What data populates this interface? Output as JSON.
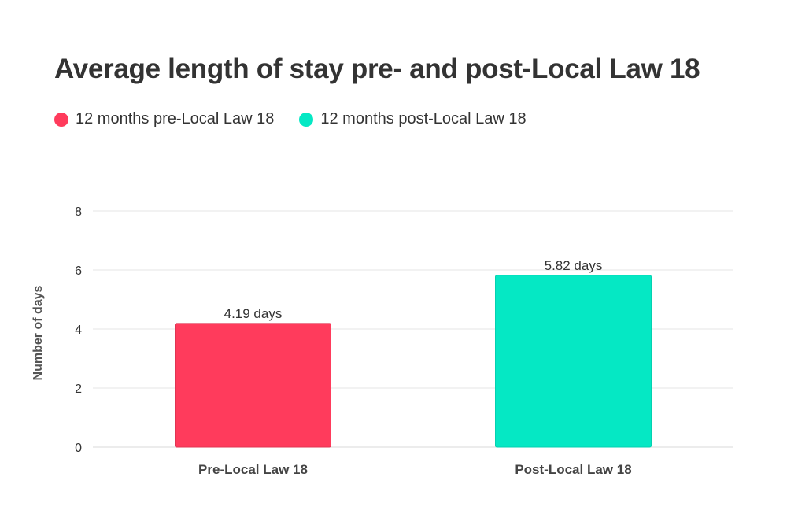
{
  "chart_data": {
    "type": "bar",
    "title": "Average length of stay pre- and post-Local Law 18",
    "xlabel": "",
    "ylabel": "Number of days",
    "categories": [
      "Pre-Local Law 18",
      "Post-Local Law 18"
    ],
    "series": [
      {
        "name": "12 months pre-Local Law 18",
        "color": "#ff3b5c",
        "values": [
          4.19,
          null
        ],
        "labels": [
          "4.19 days",
          ""
        ]
      },
      {
        "name": "12 months post-Local Law 18",
        "color": "#05e8c4",
        "values": [
          null,
          5.82
        ],
        "labels": [
          "",
          "5.82 days"
        ]
      }
    ],
    "ylim": [
      0,
      8
    ],
    "yticks": [
      0,
      2,
      4,
      6,
      8
    ],
    "grid": true,
    "legend_position": "top-left"
  }
}
